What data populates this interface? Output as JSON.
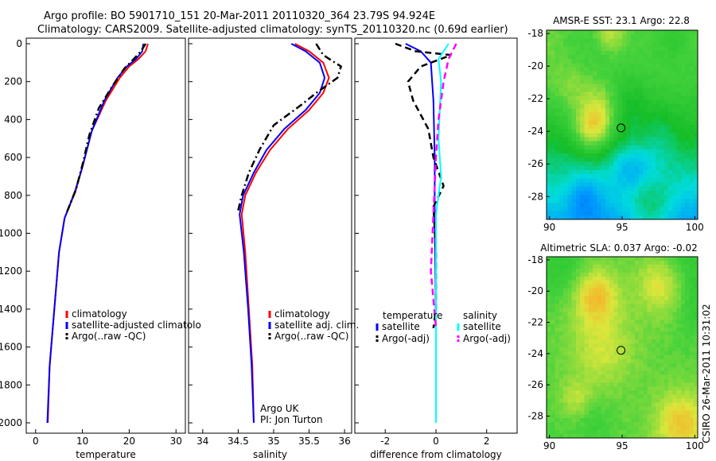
{
  "header": {
    "line1": "Argo profile: BO 5901710_151 20-Mar-2011 20110320_364 23.79S 94.924E",
    "line2": "Climatology: CARS2009. Satellite-adjusted climatology: synTS_20110320.nc (0.69d earlier)"
  },
  "side_label": "CSIRO 26-Mar-2011 10:31:02",
  "chart_data": [
    {
      "type": "line",
      "id": "temperature",
      "xlabel": "temperature",
      "ylabel": "",
      "xlim": [
        -2,
        32
      ],
      "ylim": [
        2000,
        0
      ],
      "y_inverted": true,
      "xticks": [
        0,
        10,
        20,
        30
      ],
      "yticks": [
        0,
        200,
        400,
        600,
        800,
        1000,
        1200,
        1400,
        1600,
        1800,
        2000
      ],
      "legend": [
        "climatology",
        "satellite-adjusted climatolo",
        "Argo(..raw -QC)"
      ],
      "legend_position": "lower-right",
      "series": [
        {
          "name": "climatology",
          "color": "#ff0000",
          "dash": "solid",
          "points": [
            [
              24,
              0
            ],
            [
              23.5,
              40
            ],
            [
              22,
              80
            ],
            [
              20,
              120
            ],
            [
              18,
              180
            ],
            [
              15,
              300
            ],
            [
              12,
              460
            ],
            [
              10,
              650
            ],
            [
              8.5,
              780
            ],
            [
              6.2,
              920
            ],
            [
              5,
              1100
            ],
            [
              4,
              1400
            ],
            [
              3,
              1700
            ],
            [
              2.6,
              2000
            ]
          ]
        },
        {
          "name": "satellite-adjusted climatolo",
          "color": "#0000ff",
          "dash": "solid",
          "points": [
            [
              23,
              0
            ],
            [
              22.8,
              40
            ],
            [
              21.5,
              80
            ],
            [
              19.5,
              120
            ],
            [
              17.5,
              180
            ],
            [
              14.7,
              300
            ],
            [
              12,
              460
            ],
            [
              10,
              650
            ],
            [
              8.4,
              780
            ],
            [
              6.2,
              920
            ],
            [
              5,
              1100
            ],
            [
              4,
              1400
            ],
            [
              3,
              1700
            ],
            [
              2.5,
              2000
            ]
          ]
        },
        {
          "name": "Argo(..raw -QC)",
          "color": "#000000",
          "dash": "dashdot",
          "points": [
            [
              23.5,
              0
            ],
            [
              22.5,
              40
            ],
            [
              21,
              80
            ],
            [
              19,
              130
            ],
            [
              16.5,
              220
            ],
            [
              13.5,
              340
            ],
            [
              11.5,
              480
            ],
            [
              10,
              640
            ],
            [
              8.6,
              770
            ],
            [
              6.5,
              900
            ]
          ]
        }
      ]
    },
    {
      "type": "line",
      "id": "salinity",
      "xlabel": "salinity",
      "ylabel": "",
      "xlim": [
        33.8,
        36.1
      ],
      "ylim": [
        2000,
        0
      ],
      "y_inverted": true,
      "xticks": [
        34,
        34.5,
        35,
        35.5,
        36
      ],
      "legend": [
        "climatology",
        "satellite adj. clim.",
        "Argo(..raw -QC)"
      ],
      "legend_position": "lower-right",
      "annotation": [
        "Argo UK",
        "PI: Jon Turton"
      ],
      "series": [
        {
          "name": "climatology",
          "color": "#ff0000",
          "dash": "solid",
          "points": [
            [
              35.3,
              0
            ],
            [
              35.5,
              40
            ],
            [
              35.7,
              100
            ],
            [
              35.78,
              180
            ],
            [
              35.7,
              260
            ],
            [
              35.5,
              350
            ],
            [
              35.2,
              450
            ],
            [
              34.95,
              560
            ],
            [
              34.75,
              680
            ],
            [
              34.6,
              800
            ],
            [
              34.55,
              900
            ],
            [
              34.6,
              1100
            ],
            [
              34.65,
              1400
            ],
            [
              34.7,
              1700
            ],
            [
              34.72,
              2000
            ]
          ]
        },
        {
          "name": "satellite adj. clim.",
          "color": "#0000ff",
          "dash": "solid",
          "points": [
            [
              35.25,
              0
            ],
            [
              35.45,
              40
            ],
            [
              35.65,
              100
            ],
            [
              35.72,
              180
            ],
            [
              35.65,
              260
            ],
            [
              35.45,
              350
            ],
            [
              35.15,
              450
            ],
            [
              34.9,
              560
            ],
            [
              34.72,
              680
            ],
            [
              34.57,
              800
            ],
            [
              34.52,
              900
            ],
            [
              34.58,
              1100
            ],
            [
              34.64,
              1400
            ],
            [
              34.69,
              1700
            ],
            [
              34.72,
              2000
            ]
          ]
        },
        {
          "name": "Argo(..raw -QC)",
          "color": "#000000",
          "dash": "dashdot",
          "points": [
            [
              35.6,
              0
            ],
            [
              35.7,
              60
            ],
            [
              35.95,
              120
            ],
            [
              35.9,
              180
            ],
            [
              35.6,
              260
            ],
            [
              35.4,
              320
            ],
            [
              35.0,
              430
            ],
            [
              34.8,
              560
            ],
            [
              34.65,
              680
            ],
            [
              34.55,
              800
            ],
            [
              34.5,
              880
            ]
          ]
        }
      ]
    },
    {
      "type": "line",
      "id": "difference",
      "xlabel": "difference from climatology",
      "ylabel": "",
      "xlim": [
        -3.2,
        3.2
      ],
      "ylim": [
        2000,
        0
      ],
      "y_inverted": true,
      "xticks": [
        -2,
        0,
        2
      ],
      "legend": [
        "temperature",
        "satellite",
        "Argo(-adj)",
        "salinity",
        "satellite",
        "Argo(-adj)"
      ],
      "legend_position": "lower-right",
      "series": [
        {
          "name": "temperature satellite",
          "color": "#0000ff",
          "dash": "solid",
          "points": [
            [
              -1.2,
              0
            ],
            [
              -0.6,
              40
            ],
            [
              -0.2,
              100
            ],
            [
              -0.1,
              300
            ],
            [
              -0.05,
              600
            ],
            [
              -0.05,
              900
            ],
            [
              0,
              1400
            ],
            [
              0,
              2000
            ]
          ]
        },
        {
          "name": "temperature Argo(-adj)",
          "color": "#000000",
          "dash": "dashed",
          "points": [
            [
              -1.6,
              0
            ],
            [
              -0.8,
              40
            ],
            [
              0.6,
              60
            ],
            [
              -0.6,
              120
            ],
            [
              -1.1,
              200
            ],
            [
              -0.9,
              300
            ],
            [
              -0.3,
              450
            ],
            [
              -0.1,
              600
            ],
            [
              0.3,
              750
            ],
            [
              -0.1,
              860
            ],
            [
              0,
              1100
            ],
            [
              0,
              1400
            ],
            [
              -0.1,
              1500
            ]
          ]
        },
        {
          "name": "salinity satellite",
          "color": "#00ffff",
          "dash": "solid",
          "points": [
            [
              0.5,
              0
            ],
            [
              0.1,
              80
            ],
            [
              0.2,
              200
            ],
            [
              0.1,
              500
            ],
            [
              0.2,
              700
            ],
            [
              0,
              900
            ],
            [
              0,
              1200
            ],
            [
              0,
              2000
            ]
          ]
        },
        {
          "name": "salinity Argo(-adj)",
          "color": "#ff00ff",
          "dash": "dashed",
          "points": [
            [
              0.8,
              0
            ],
            [
              0.5,
              80
            ],
            [
              0.3,
              200
            ],
            [
              0.1,
              400
            ],
            [
              0,
              600
            ],
            [
              -0.1,
              900
            ],
            [
              -0.2,
              1200
            ],
            [
              0,
              1500
            ]
          ]
        }
      ]
    },
    {
      "type": "heatmap",
      "id": "sst-map",
      "title": "AMSR-E SST: 23.1 Argo: 22.8",
      "xticks": [
        90,
        95,
        100
      ],
      "yticks": [
        -18,
        -20,
        -22,
        -24,
        -26,
        -28
      ],
      "xlim": [
        89.8,
        100.2
      ],
      "ylim": [
        -29.4,
        -17.8
      ],
      "marker": {
        "lon": 94.924,
        "lat": -23.79
      }
    },
    {
      "type": "heatmap",
      "id": "sla-map",
      "title": "Altimetric SLA: 0.037 Argo: -0.02",
      "xticks": [
        90,
        95,
        100
      ],
      "yticks": [
        -18,
        -20,
        -22,
        -24,
        -26,
        -28
      ],
      "xlim": [
        89.8,
        100.2
      ],
      "ylim": [
        -29.4,
        -17.8
      ],
      "marker": {
        "lon": 94.924,
        "lat": -23.79
      }
    }
  ]
}
